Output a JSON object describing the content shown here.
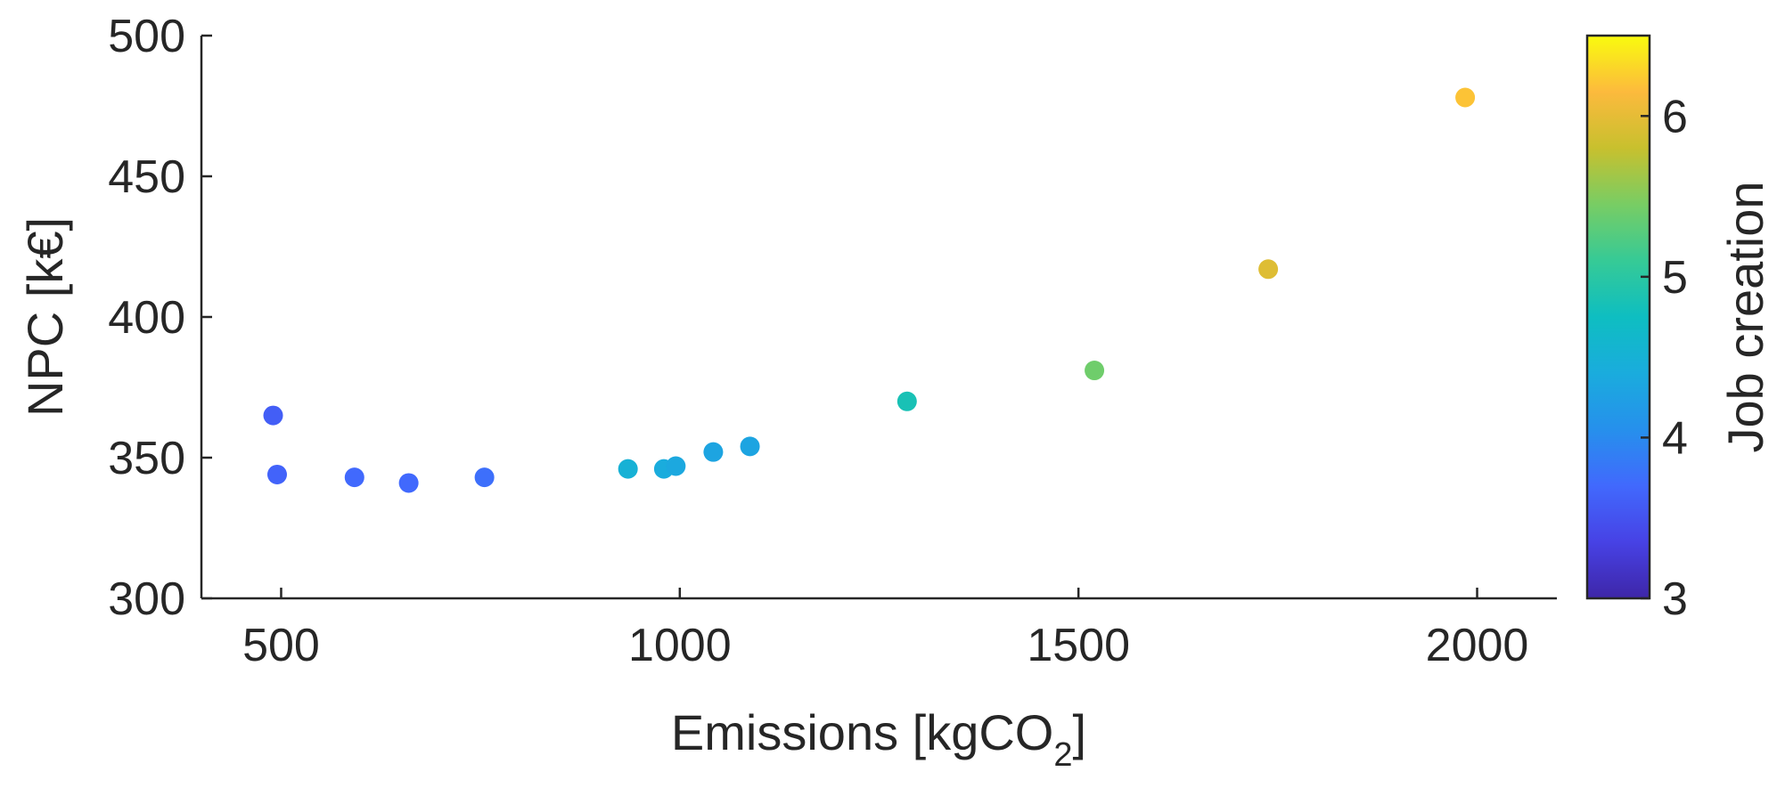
{
  "chart_data": {
    "type": "scatter",
    "xlabel": "Emissions [kgCO",
    "xlabel_subscript": "2",
    "xlabel_suffix": "]",
    "ylabel": "NPC [k€]",
    "colorbar_label": "Job creation",
    "xlim": [
      400,
      2100
    ],
    "ylim": [
      300,
      500
    ],
    "clim": [
      3,
      6.5
    ],
    "xticks": [
      500,
      1000,
      1500,
      2000
    ],
    "yticks": [
      300,
      350,
      400,
      450,
      500
    ],
    "cticks": [
      3,
      4,
      5,
      6
    ],
    "colormap": "parula",
    "grid": false,
    "points": [
      {
        "x": 490,
        "y": 365,
        "c": 3.6
      },
      {
        "x": 495,
        "y": 344,
        "c": 3.65
      },
      {
        "x": 592,
        "y": 343,
        "c": 3.7
      },
      {
        "x": 660,
        "y": 341,
        "c": 3.7
      },
      {
        "x": 755,
        "y": 343,
        "c": 3.75
      },
      {
        "x": 935,
        "y": 346,
        "c": 4.5
      },
      {
        "x": 980,
        "y": 346,
        "c": 4.4
      },
      {
        "x": 995,
        "y": 347,
        "c": 4.35
      },
      {
        "x": 1042,
        "y": 352,
        "c": 4.3
      },
      {
        "x": 1088,
        "y": 354,
        "c": 4.3
      },
      {
        "x": 1285,
        "y": 370,
        "c": 4.85
      },
      {
        "x": 1520,
        "y": 381,
        "c": 5.4
      },
      {
        "x": 1738,
        "y": 417,
        "c": 5.95
      },
      {
        "x": 1985,
        "y": 478,
        "c": 6.2
      }
    ]
  }
}
